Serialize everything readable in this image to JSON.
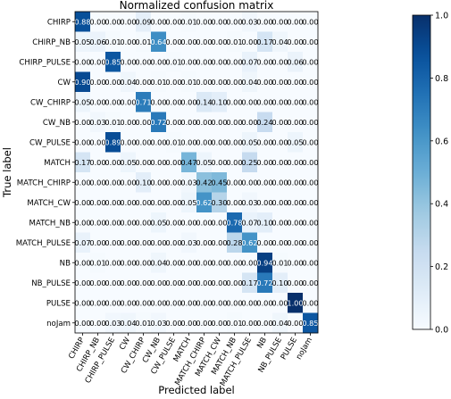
{
  "chart_data": {
    "type": "heatmap",
    "title": "Normalized confusion matrix",
    "xlabel": "Predicted label",
    "ylabel": "True label",
    "labels": [
      "CHIRP",
      "CHIRP_NB",
      "CHIRP_PULSE",
      "CW",
      "CW_CHIRP",
      "CW_NB",
      "CW_PULSE",
      "MATCH",
      "MATCH_CHIRP",
      "MATCH_CW",
      "MATCH_NB",
      "MATCH_PULSE",
      "NB",
      "NB_PULSE",
      "PULSE",
      "noJam"
    ],
    "matrix": [
      [
        0.88,
        0.0,
        0.0,
        0.0,
        0.09,
        0.0,
        0.0,
        0.01,
        0.0,
        0.0,
        0.0,
        0.03,
        0.0,
        0.0,
        0.0,
        0.0
      ],
      [
        0.05,
        0.06,
        0.01,
        0.0,
        0.01,
        0.64,
        0.0,
        0.0,
        0.0,
        0.0,
        0.01,
        0.0,
        0.17,
        0.04,
        0.0,
        0.0
      ],
      [
        0.0,
        0.0,
        0.85,
        0.0,
        0.0,
        0.0,
        0.01,
        0.0,
        0.0,
        0.0,
        0.0,
        0.07,
        0.0,
        0.0,
        0.06,
        0.0
      ],
      [
        0.9,
        0.0,
        0.0,
        0.04,
        0.0,
        0.01,
        0.0,
        0.01,
        0.0,
        0.0,
        0.0,
        0.04,
        0.0,
        0.0,
        0.0,
        0.0
      ],
      [
        0.05,
        0.0,
        0.0,
        0.0,
        0.71,
        0.0,
        0.0,
        0.0,
        0.14,
        0.1,
        0.0,
        0.0,
        0.0,
        0.0,
        0.0,
        0.0
      ],
      [
        0.0,
        0.03,
        0.01,
        0.0,
        0.0,
        0.72,
        0.0,
        0.0,
        0.0,
        0.0,
        0.0,
        0.0,
        0.24,
        0.0,
        0.0,
        0.0
      ],
      [
        0.0,
        0.0,
        0.89,
        0.0,
        0.0,
        0.0,
        0.01,
        0.0,
        0.0,
        0.0,
        0.0,
        0.05,
        0.0,
        0.0,
        0.05,
        0.0
      ],
      [
        0.17,
        0.0,
        0.0,
        0.05,
        0.0,
        0.0,
        0.0,
        0.47,
        0.05,
        0.0,
        0.0,
        0.25,
        0.0,
        0.0,
        0.0,
        0.0
      ],
      [
        0.0,
        0.0,
        0.0,
        0.0,
        0.1,
        0.0,
        0.0,
        0.03,
        0.42,
        0.45,
        0.0,
        0.0,
        0.0,
        0.0,
        0.0,
        0.0
      ],
      [
        0.0,
        0.0,
        0.0,
        0.0,
        0.0,
        0.0,
        0.0,
        0.05,
        0.62,
        0.3,
        0.0,
        0.03,
        0.0,
        0.0,
        0.0,
        0.0
      ],
      [
        0.0,
        0.0,
        0.0,
        0.0,
        0.0,
        0.05,
        0.0,
        0.0,
        0.0,
        0.0,
        0.78,
        0.07,
        0.1,
        0.0,
        0.0,
        0.0
      ],
      [
        0.07,
        0.0,
        0.0,
        0.0,
        0.0,
        0.0,
        0.0,
        0.03,
        0.0,
        0.0,
        0.28,
        0.62,
        0.0,
        0.0,
        0.0,
        0.0
      ],
      [
        0.0,
        0.01,
        0.0,
        0.0,
        0.0,
        0.04,
        0.0,
        0.0,
        0.0,
        0.0,
        0.0,
        0.0,
        0.94,
        0.01,
        0.0,
        0.0
      ],
      [
        0.0,
        0.0,
        0.0,
        0.0,
        0.0,
        0.0,
        0.0,
        0.0,
        0.0,
        0.0,
        0.0,
        0.17,
        0.72,
        0.1,
        0.0,
        0.0
      ],
      [
        0.0,
        0.0,
        0.0,
        0.0,
        0.0,
        0.0,
        0.0,
        0.0,
        0.0,
        0.0,
        0.0,
        0.0,
        0.0,
        0.0,
        1.0,
        0.0
      ],
      [
        0.0,
        0.0,
        0.03,
        0.04,
        0.01,
        0.03,
        0.0,
        0.0,
        0.0,
        0.0,
        0.01,
        0.0,
        0.0,
        0.04,
        0.0,
        0.85
      ]
    ],
    "value_range": [
      0.0,
      1.0
    ],
    "colormap": "Blues",
    "colormap_low": "#f7fbff",
    "colormap_high": "#08306b",
    "colorbar_ticks": [
      "0.0",
      "0.2",
      "0.4",
      "0.6",
      "0.8",
      "1.0"
    ],
    "grid": false
  }
}
